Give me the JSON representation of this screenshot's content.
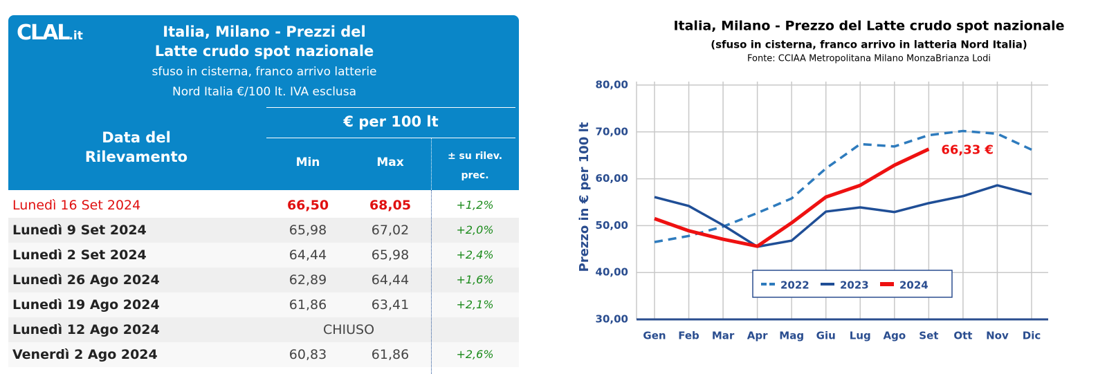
{
  "header": {
    "logo": "CLAL",
    "logo_suffix": ".it",
    "title_lines": [
      "Italia, Milano - Prezzi del",
      "Latte crudo spot nazionale"
    ],
    "subtitle_lines": [
      "sfuso in cisterna, franco arrivo latterie",
      "Nord Italia €/100 lt. IVA esclusa"
    ]
  },
  "table": {
    "columns": {
      "date": [
        "Data del",
        "Rilevamento"
      ],
      "group": "€ per 100 lt",
      "min": "Min",
      "max": "Max",
      "change": [
        "± su rilev.",
        "prec."
      ]
    },
    "rows": [
      [
        "Lunedì 16 Set 2024",
        "66,50",
        "68,05",
        "+1,2%"
      ],
      [
        "Lunedì 9 Set 2024",
        "65,98",
        "67,02",
        "+2,0%"
      ],
      [
        "Lunedì 2 Set 2024",
        "64,44",
        "65,98",
        "+2,4%"
      ],
      [
        "Lunedì 26 Ago 2024",
        "62,89",
        "64,44",
        "+1,6%"
      ],
      [
        "Lunedì 19 Ago 2024",
        "61,86",
        "63,41",
        "+2,1%"
      ],
      [
        "Lunedì 12 Ago 2024",
        "CHIUSO"
      ],
      [
        "Venerdì 2 Ago 2024",
        "60,83",
        "61,86",
        "+2,6%"
      ]
    ]
  },
  "chart_data": {
    "type": "line",
    "title": "Italia, Milano - Prezzo del Latte crudo spot nazionale",
    "subtitle": "(sfuso in cisterna, franco arrivo in latteria Nord Italia)",
    "source": "Fonte: CCIAA Metropolitana Milano MonzaBrianza Lodi",
    "ylabel": "Prezzo in € per 100 lt",
    "categories": [
      "Gen",
      "Feb",
      "Mar",
      "Apr",
      "Mag",
      "Giu",
      "Lug",
      "Ago",
      "Set",
      "Ott",
      "Nov",
      "Dic"
    ],
    "series": [
      {
        "name": "2022",
        "color": "#2e7bbd",
        "dashed": true,
        "values": [
          46.5,
          47.8,
          49.8,
          52.7,
          55.8,
          62.2,
          67.4,
          66.9,
          69.3,
          70.2,
          69.6,
          66.2
        ]
      },
      {
        "name": "2023",
        "color": "#1f4e96",
        "values": [
          56.1,
          54.2,
          50.1,
          45.5,
          46.8,
          53.0,
          53.9,
          52.9,
          54.8,
          56.3,
          58.6,
          56.7
        ]
      },
      {
        "name": "2024",
        "color": "#ee1111",
        "values": [
          51.5,
          48.9,
          47.1,
          45.6,
          50.6,
          56.1,
          58.6,
          62.9,
          66.33,
          null,
          null,
          null
        ]
      }
    ],
    "annotation": "66,33 €",
    "ylim": [
      30,
      80
    ],
    "yticks": [
      {
        "value": 30,
        "label": "30,00"
      },
      {
        "value": 40,
        "label": "40,00"
      },
      {
        "value": 50,
        "label": "50,00"
      },
      {
        "value": 60,
        "label": "60,00"
      },
      {
        "value": 70,
        "label": "70,00"
      },
      {
        "value": 80,
        "label": "80,00"
      }
    ],
    "grid": true,
    "legend": "bottom"
  }
}
